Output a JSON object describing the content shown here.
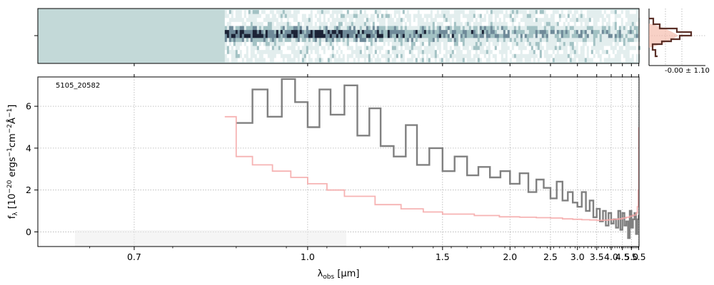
{
  "chart_data": {
    "type": "line",
    "object_id": "5105_20582",
    "xlabel": "λ_obs [μm]",
    "ylabel": "f_λ [10^-20 ergs^-1 cm^-2 Å^-1]",
    "x_scale": "reciprocal",
    "xlim": [
      0.6,
      5.52
    ],
    "ylim": [
      -0.7,
      7.4
    ],
    "x_ticks": [
      0.7,
      1.0,
      1.5,
      2.0,
      2.5,
      3.0,
      3.5,
      4.0,
      4.5,
      5.0,
      5.5
    ],
    "x_tick_labels": [
      "0.7",
      "1.0",
      "1.5",
      "2.0",
      "2.5",
      "3.0",
      "3.5",
      "4.0",
      "4.5",
      "5.0",
      "5.5"
    ],
    "y_ticks": [
      0,
      2,
      4,
      6
    ],
    "y_tick_labels": [
      "0",
      "2",
      "4",
      "6"
    ],
    "grid": true,
    "series": [
      {
        "role": "flux",
        "color": "#808080",
        "x": [
          0.85,
          0.88,
          0.91,
          0.94,
          0.97,
          1.0,
          1.03,
          1.06,
          1.1,
          1.14,
          1.18,
          1.22,
          1.27,
          1.32,
          1.37,
          1.43,
          1.5,
          1.57,
          1.65,
          1.73,
          1.82,
          1.91,
          2.0,
          2.1,
          2.2,
          2.3,
          2.4,
          2.5,
          2.6,
          2.7,
          2.8,
          2.9,
          3.0,
          3.1,
          3.2,
          3.3,
          3.4,
          3.5,
          3.6,
          3.7,
          3.8,
          3.9,
          4.0,
          4.1,
          4.2,
          4.3,
          4.4,
          4.5,
          4.6,
          4.7,
          4.8,
          4.9,
          5.0,
          5.1,
          5.2,
          5.3,
          5.4,
          5.5
        ],
        "y": [
          5.2,
          6.8,
          5.5,
          7.3,
          6.2,
          5.0,
          6.8,
          5.6,
          7.0,
          4.6,
          5.9,
          4.1,
          3.6,
          5.1,
          3.2,
          4.0,
          2.9,
          3.6,
          2.7,
          3.1,
          2.6,
          2.9,
          2.3,
          2.8,
          1.9,
          2.5,
          2.1,
          1.6,
          2.4,
          1.5,
          1.9,
          1.4,
          1.2,
          1.9,
          1.0,
          1.5,
          0.7,
          1.1,
          0.5,
          1.0,
          0.3,
          0.9,
          0.4,
          0.6,
          0.2,
          1.0,
          0.1,
          0.9,
          0.3,
          0.5,
          -0.3,
          1.0,
          0.2,
          0.6,
          0.9,
          -0.1,
          0.6,
          0.8
        ]
      },
      {
        "role": "error",
        "color": "#f4a6a6",
        "x": [
          0.83,
          0.85,
          0.88,
          0.92,
          0.96,
          1.0,
          1.05,
          1.1,
          1.2,
          1.3,
          1.4,
          1.5,
          1.7,
          1.9,
          2.1,
          2.3,
          2.5,
          2.7,
          2.9,
          3.1,
          3.3,
          3.5,
          3.7,
          3.9,
          4.1,
          4.3,
          4.5,
          4.7,
          4.9,
          5.1,
          5.3,
          5.4,
          5.46,
          5.5
        ],
        "y": [
          5.5,
          3.6,
          3.2,
          2.9,
          2.6,
          2.3,
          2.0,
          1.7,
          1.3,
          1.1,
          0.95,
          0.85,
          0.78,
          0.72,
          0.7,
          0.68,
          0.66,
          0.62,
          0.6,
          0.58,
          0.57,
          0.55,
          0.56,
          0.58,
          0.6,
          0.62,
          0.66,
          0.7,
          0.75,
          0.8,
          0.9,
          1.2,
          2.0,
          5.0
        ]
      }
    ],
    "spectrum_2d": {
      "x_start": 0.83,
      "x_end": 5.48,
      "rows": 13
    },
    "side_histogram": {
      "label": "-0.00 ± 1.10"
    }
  }
}
